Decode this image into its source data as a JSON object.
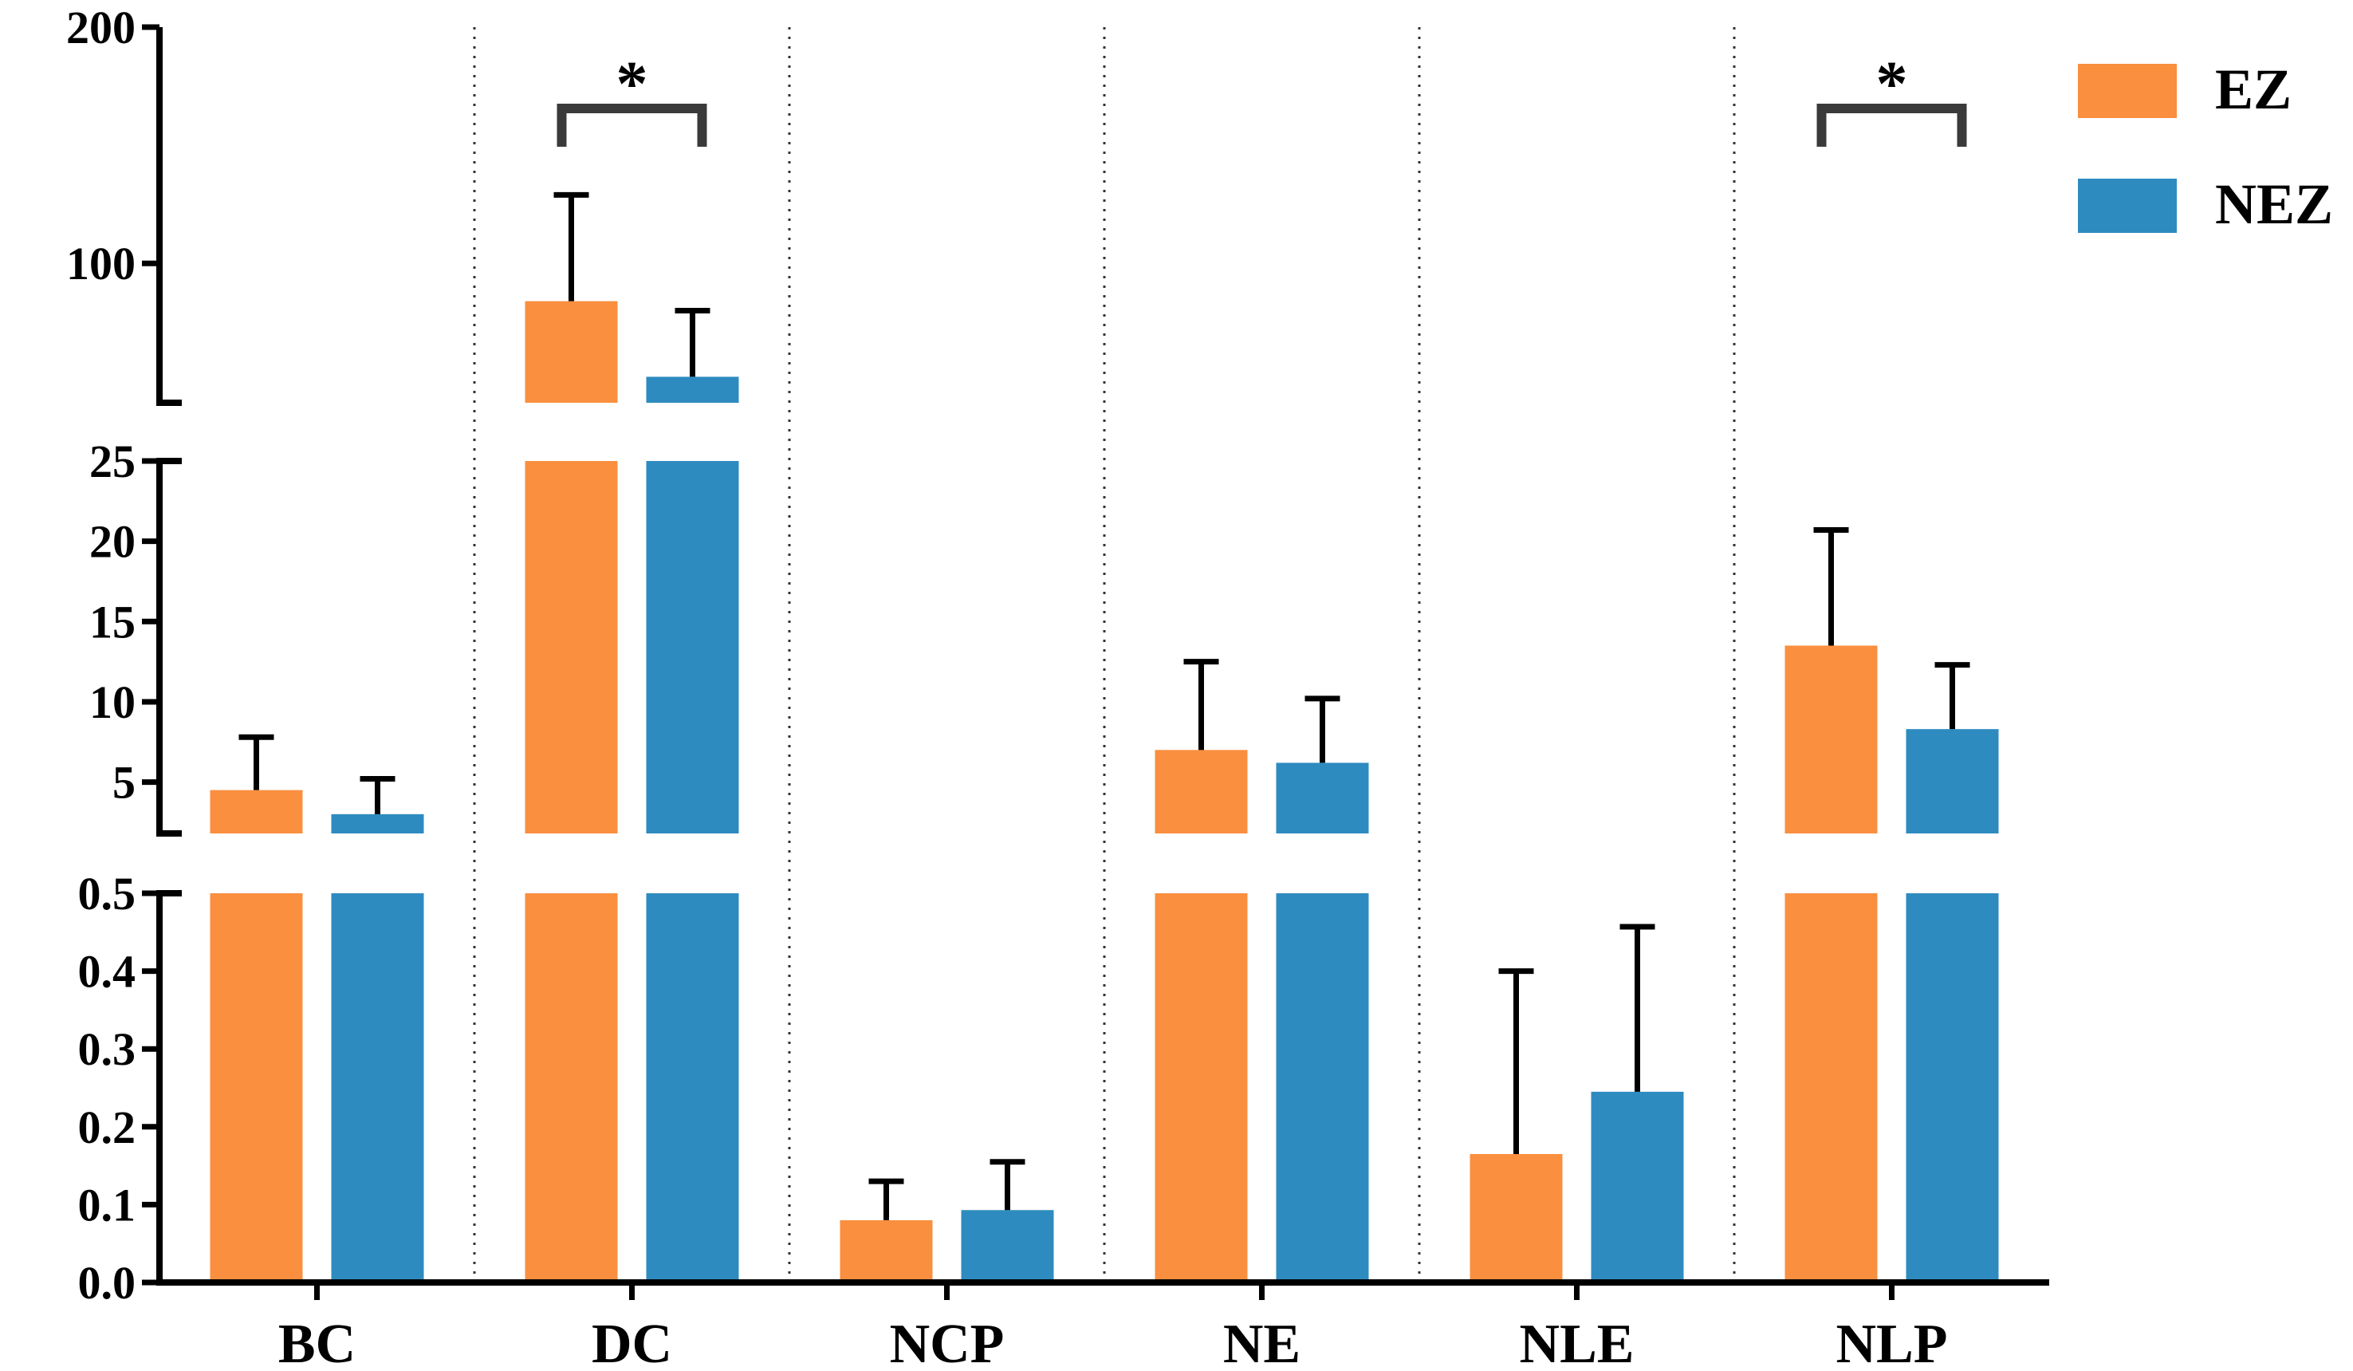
{
  "chart_data": {
    "type": "bar",
    "title": "",
    "xlabel": "",
    "ylabel": "",
    "categories": [
      "BC",
      "DC",
      "NCP",
      "NE",
      "NLE",
      "NLP"
    ],
    "series": [
      {
        "name": "EZ",
        "color": "#F98F3F",
        "values": [
          4.5,
          84,
          0.08,
          7.0,
          0.165,
          13.5
        ],
        "errors": [
          3.3,
          45,
          0.05,
          5.5,
          0.235,
          7.2
        ]
      },
      {
        "name": "NEZ",
        "color": "#2E8BC0",
        "values": [
          3.0,
          52,
          0.093,
          6.2,
          0.245,
          8.3
        ],
        "errors": [
          2.2,
          28,
          0.062,
          4.0,
          0.212,
          4.0
        ]
      }
    ],
    "y_segments": [
      {
        "range": [
          0,
          0.5
        ],
        "ticks": [
          "0.0",
          "0.1",
          "0.2",
          "0.3",
          "0.4",
          "0.5"
        ],
        "tick_values": [
          0,
          0.1,
          0.2,
          0.3,
          0.4,
          0.5
        ]
      },
      {
        "range": [
          1.8,
          25
        ],
        "ticks": [
          "5",
          "10",
          "15",
          "20",
          "25"
        ],
        "tick_values": [
          5,
          10,
          15,
          20,
          25
        ]
      },
      {
        "range": [
          41,
          200
        ],
        "ticks": [
          "100",
          "200"
        ],
        "tick_values": [
          100,
          200
        ]
      }
    ],
    "significance": [
      {
        "category": "DC",
        "label": "*"
      },
      {
        "category": "NLP",
        "label": "*"
      }
    ],
    "legend": {
      "position": "top-right",
      "entries": [
        "EZ",
        "NEZ"
      ]
    },
    "grid": false
  }
}
